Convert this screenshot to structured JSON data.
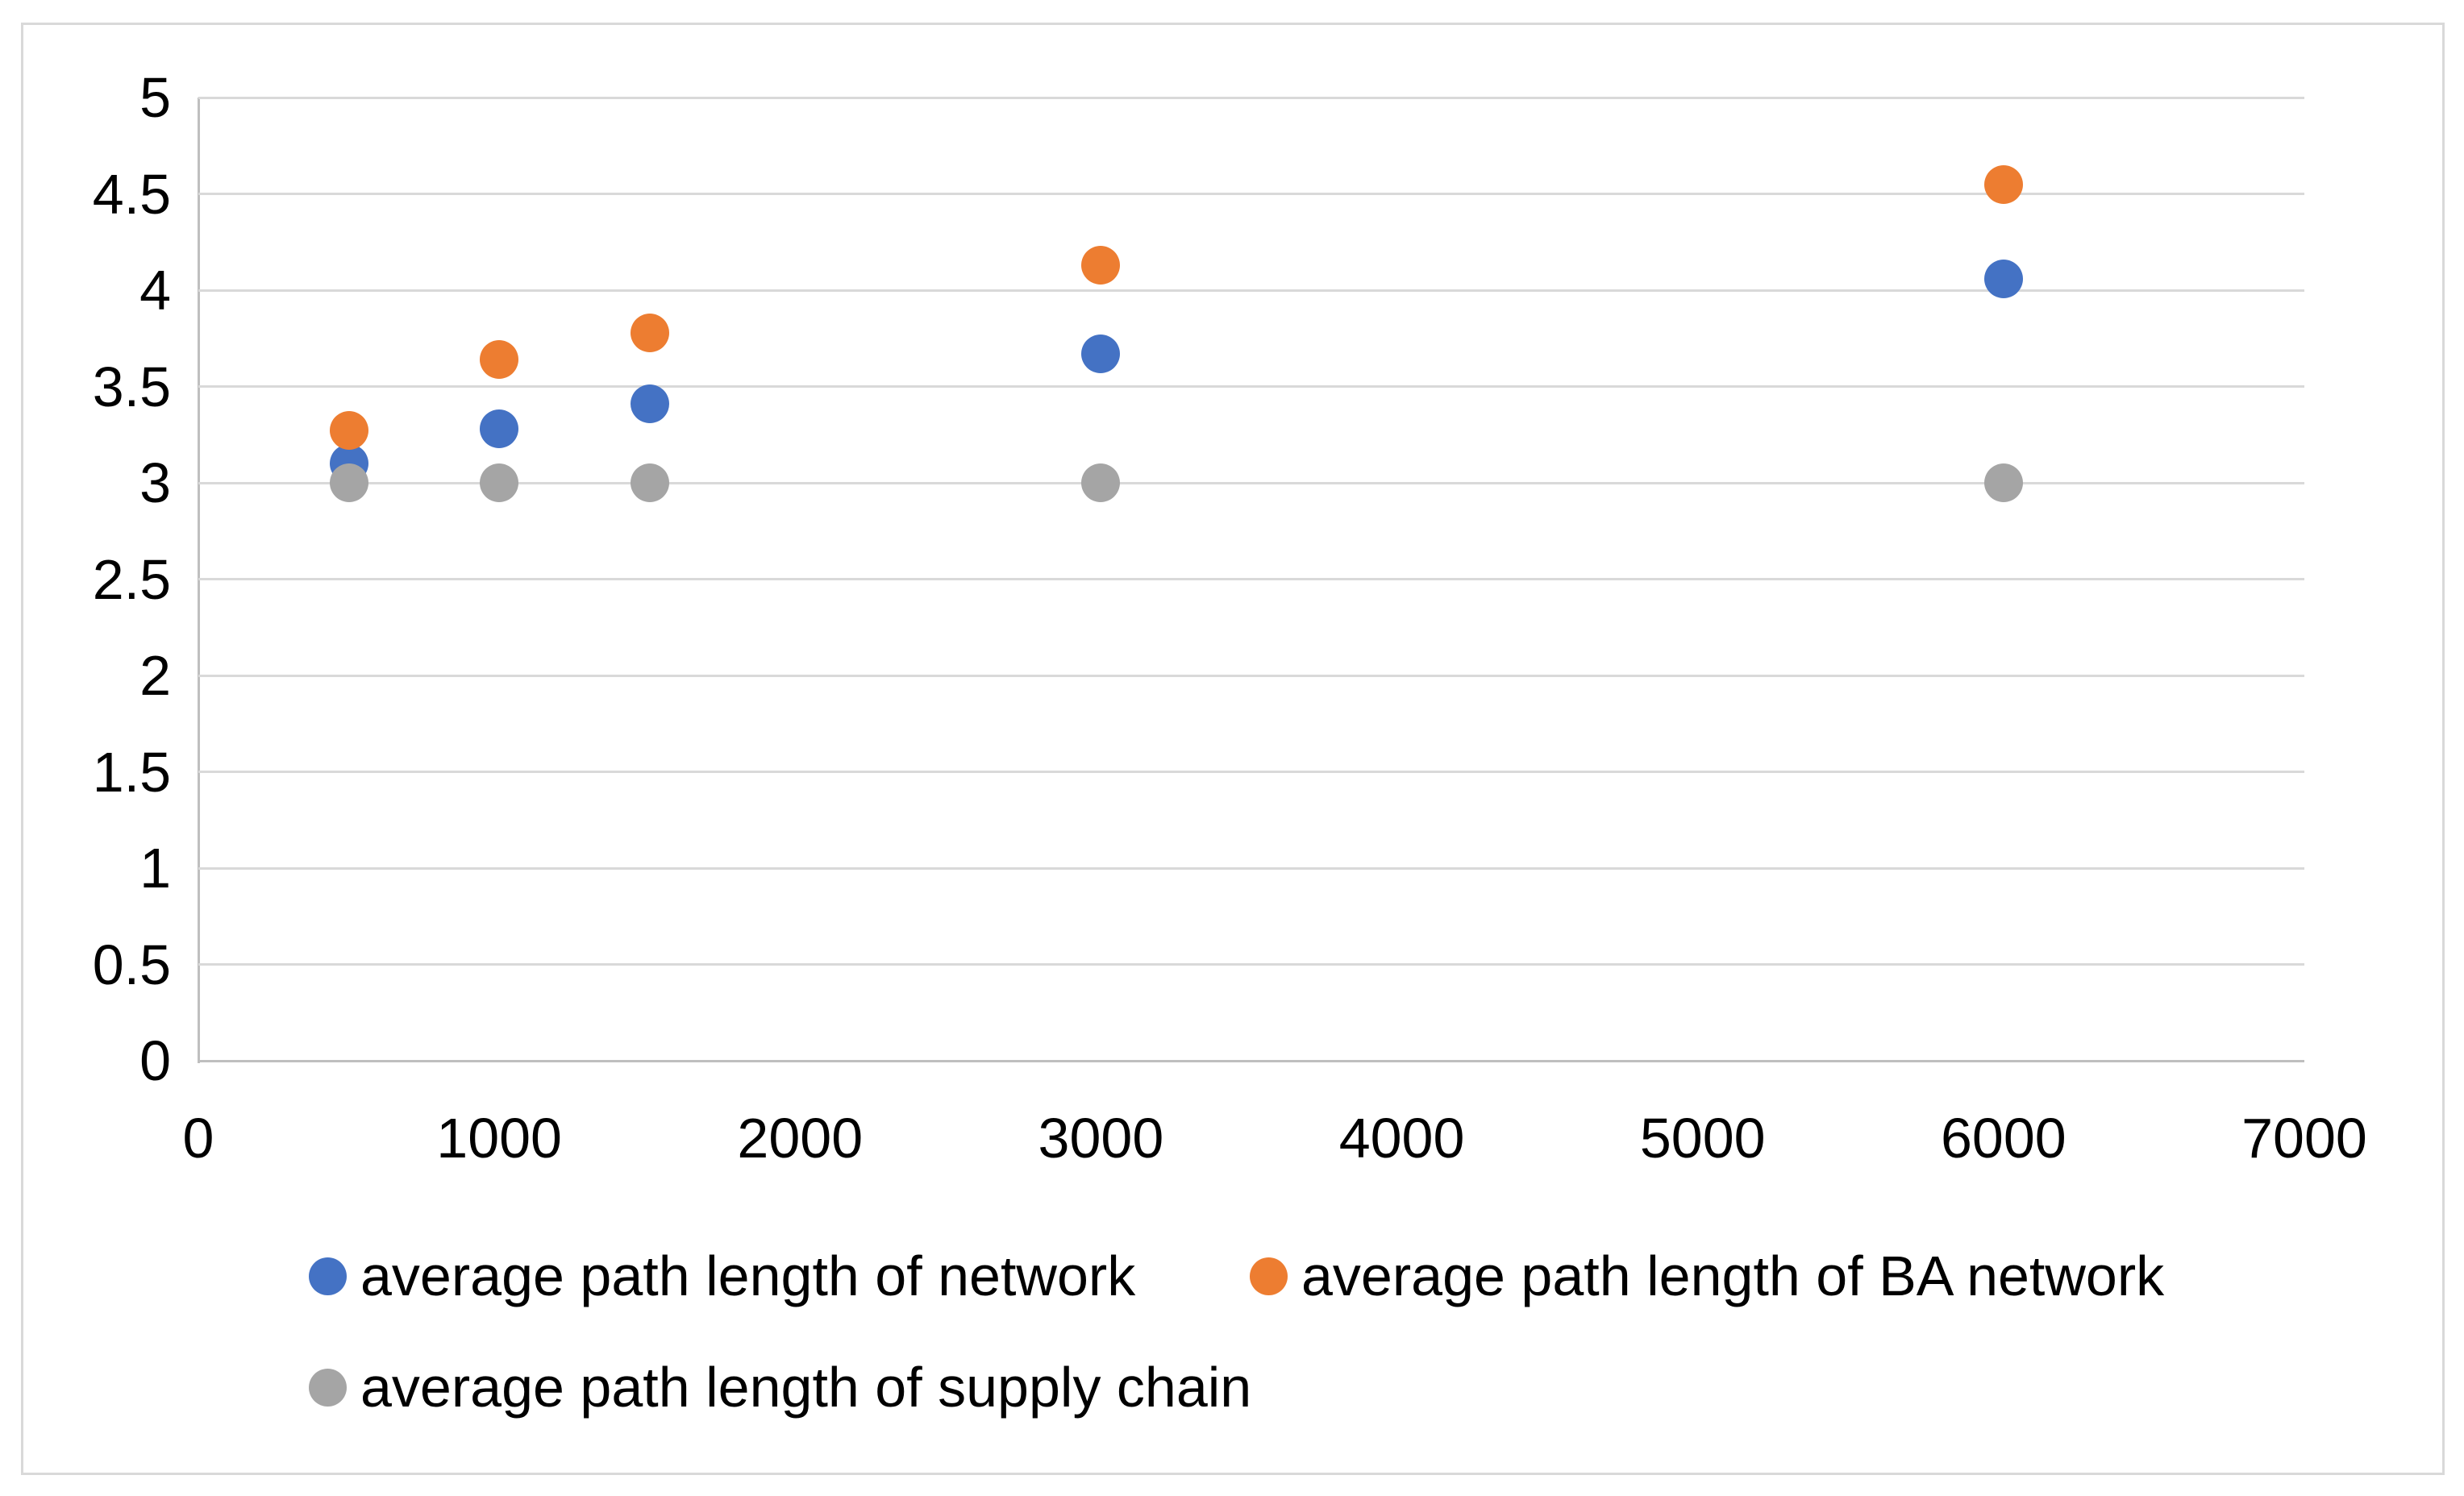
{
  "chart_data": {
    "type": "scatter",
    "title": "",
    "xlabel": "",
    "ylabel": "",
    "x": [
      500,
      1000,
      1500,
      3000,
      6000
    ],
    "series": [
      {
        "name": "average path length of network",
        "color": "#4472C4",
        "values": [
          3.1,
          3.28,
          3.41,
          3.67,
          4.06
        ]
      },
      {
        "name": "average path length of BA network",
        "color": "#ED7D31",
        "values": [
          3.27,
          3.64,
          3.78,
          4.13,
          4.55
        ]
      },
      {
        "name": "average path length of supply chain",
        "color": "#A5A5A5",
        "values": [
          3.0,
          3.0,
          3.0,
          3.0,
          3.0
        ]
      }
    ],
    "xlim": [
      0,
      7000
    ],
    "ylim": [
      0,
      5
    ],
    "x_ticks": [
      0,
      1000,
      2000,
      3000,
      4000,
      5000,
      6000,
      7000
    ],
    "x_tick_labels": [
      "0",
      "1000",
      "2000",
      "3000",
      "4000",
      "5000",
      "6000",
      "7000"
    ],
    "y_ticks": [
      0,
      0.5,
      1,
      1.5,
      2,
      2.5,
      3,
      3.5,
      4,
      4.5,
      5
    ],
    "y_tick_labels": [
      "0",
      "0.5",
      "1",
      "1.5",
      "2",
      "2.5",
      "3",
      "3.5",
      "4",
      "4.5",
      "5"
    ],
    "grid": "horizontal-only",
    "legend_position": "bottom-left",
    "marker": "circle",
    "colors": {
      "gridline": "#D9D9D9",
      "axis_line": "#BFBFBF",
      "text": "#000000",
      "background": "#FFFFFF",
      "border": "#D9D9D9"
    }
  }
}
